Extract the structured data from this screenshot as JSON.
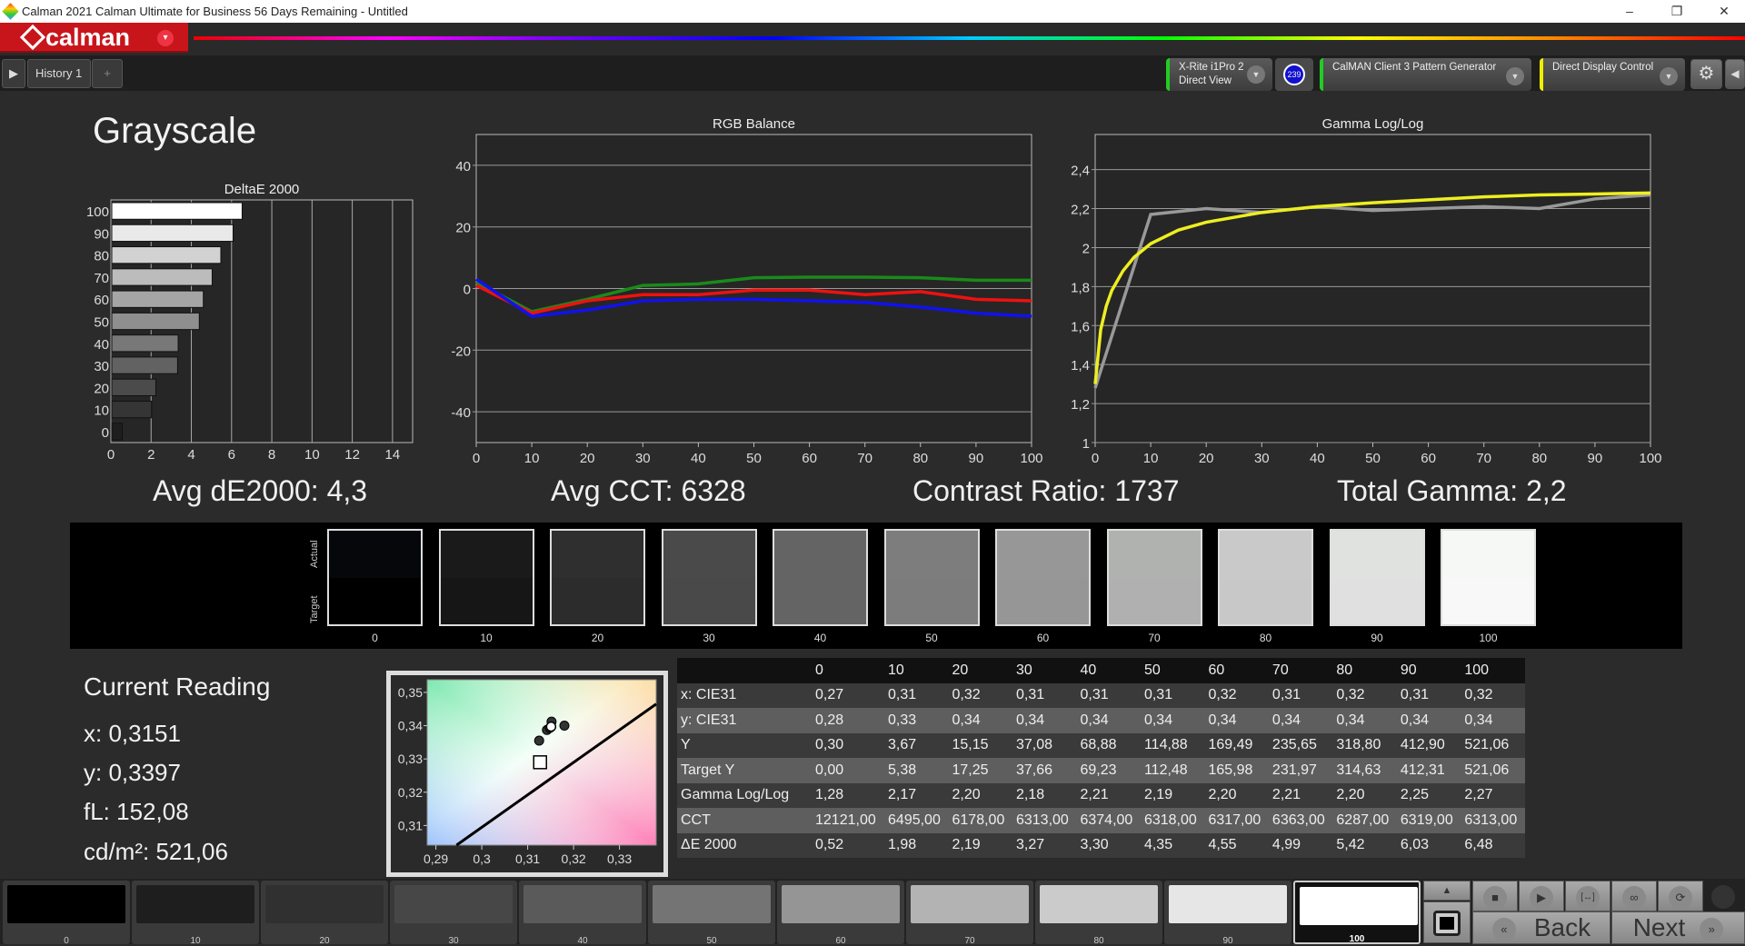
{
  "window": {
    "title": "Calman 2021 Calman Ultimate for Business 56 Days Remaining - Untitled",
    "minimize": "–",
    "restore": "❐",
    "close": "✕"
  },
  "logo": {
    "text": "calman",
    "menu": "▾",
    "brand_color": "#c8151b"
  },
  "tabs": {
    "play": "▶",
    "history": "History 1",
    "add": "+"
  },
  "devices": [
    {
      "line1": "X-Rite i1Pro 2",
      "line2": "Direct View",
      "color": "#22cc22",
      "badge": "239"
    },
    {
      "line1": "CalMAN Client 3 Pattern Generator",
      "line2": "",
      "color": "#22cc22"
    },
    {
      "line1": "Direct Display Control",
      "line2": "",
      "color": "#eeee00"
    }
  ],
  "toolbar": {
    "settings": "⚙",
    "collapse": "◀"
  },
  "page": {
    "title": "Grayscale"
  },
  "summary": {
    "avg_de": "Avg dE2000: 4,3",
    "avg_cct": "Avg CCT: 6328",
    "contrast": "Contrast Ratio: 1737",
    "gamma": "Total Gamma: 2,2"
  },
  "chart_data": [
    {
      "type": "bar",
      "orientation": "horizontal",
      "title": "DeltaE 2000",
      "categories": [
        "0",
        "10",
        "20",
        "30",
        "40",
        "50",
        "60",
        "70",
        "80",
        "90",
        "100"
      ],
      "values": [
        0.52,
        1.98,
        2.19,
        3.27,
        3.3,
        4.35,
        4.55,
        4.99,
        5.42,
        6.03,
        6.48
      ],
      "xlim": [
        0,
        15
      ],
      "xticks": [
        "0",
        "2",
        "4",
        "6",
        "8",
        "10",
        "12",
        "14"
      ],
      "grid": true
    },
    {
      "type": "line",
      "title": "RGB Balance",
      "x": [
        0,
        10,
        20,
        30,
        40,
        50,
        60,
        70,
        80,
        90,
        100
      ],
      "ylim": [
        -50,
        50
      ],
      "yticks": [
        "40",
        "20",
        "0",
        "-20",
        "-40"
      ],
      "xticks": [
        "0",
        "10",
        "20",
        "30",
        "40",
        "50",
        "60",
        "70",
        "80",
        "90",
        "100"
      ],
      "grid": true,
      "series": [
        {
          "color": "#1a8a1a",
          "values": [
            2,
            -7.5,
            -3.5,
            1,
            1.5,
            3.5,
            3.7,
            3.7,
            3.5,
            2.7,
            2.7
          ]
        },
        {
          "color": "#ee1111",
          "values": [
            1,
            -8,
            -4,
            -2,
            -2,
            -0.5,
            -0.5,
            -2,
            -1,
            -3.5,
            -4
          ]
        },
        {
          "color": "#1111ee",
          "values": [
            3,
            -9,
            -7,
            -4,
            -3.5,
            -3.5,
            -4,
            -4.5,
            -6,
            -8,
            -9
          ]
        }
      ]
    },
    {
      "type": "line",
      "title": "Gamma Log/Log",
      "ylim": [
        1,
        2.58
      ],
      "yticks": [
        "2,4",
        "2,2",
        "2",
        "1,8",
        "1,6",
        "1,4",
        "1,2",
        "1"
      ],
      "xticks": [
        "0",
        "10",
        "20",
        "30",
        "40",
        "50",
        "60",
        "70",
        "80",
        "90",
        "100"
      ],
      "grid": true,
      "series": [
        {
          "color": "#999999",
          "x": [
            0,
            10,
            20,
            30,
            40,
            50,
            60,
            70,
            80,
            90,
            100
          ],
          "values": [
            1.28,
            2.17,
            2.2,
            2.18,
            2.21,
            2.19,
            2.2,
            2.21,
            2.2,
            2.25,
            2.27
          ]
        },
        {
          "color": "#eeee22",
          "x": [
            0,
            1,
            2,
            3,
            5,
            7,
            10,
            15,
            20,
            30,
            40,
            50,
            60,
            70,
            80,
            90,
            100
          ],
          "values": [
            1.3,
            1.58,
            1.7,
            1.78,
            1.88,
            1.95,
            2.02,
            2.09,
            2.13,
            2.18,
            2.21,
            2.23,
            2.245,
            2.26,
            2.27,
            2.275,
            2.28
          ]
        }
      ]
    },
    {
      "type": "scatter",
      "xlim": [
        0.2881,
        0.338
      ],
      "ylim": [
        0.3041,
        0.3538
      ],
      "xticks": [
        "0,29",
        "0,3",
        "0,31",
        "0,32",
        "0,33"
      ],
      "yticks": [
        "0,35",
        "0,34",
        "0,33",
        "0,32",
        "0,31"
      ],
      "target": [
        0.3127,
        0.329
      ],
      "points": [
        [
          0.3125,
          0.3355
        ],
        [
          0.3142,
          0.3387
        ],
        [
          0.3148,
          0.3393
        ],
        [
          0.3152,
          0.3412
        ],
        [
          0.318,
          0.34
        ]
      ],
      "current": [
        0.3151,
        0.3397
      ],
      "locus": [
        [
          0.2945,
          0.3041
        ],
        [
          0.338,
          0.3465
        ]
      ]
    }
  ],
  "swatches": {
    "actual_label": "Actual",
    "target_label": "Target",
    "items": [
      {
        "label": "0",
        "actual": "#05070b",
        "target": "#000000"
      },
      {
        "label": "10",
        "actual": "#1a1a1a",
        "target": "#161616"
      },
      {
        "label": "20",
        "actual": "#2f2f2f",
        "target": "#2c2c2c"
      },
      {
        "label": "30",
        "actual": "#4a4a4a",
        "target": "#494949"
      },
      {
        "label": "40",
        "actual": "#646464",
        "target": "#646464"
      },
      {
        "label": "50",
        "actual": "#7d7d7d",
        "target": "#7c7c7c"
      },
      {
        "label": "60",
        "actual": "#979797",
        "target": "#969696"
      },
      {
        "label": "70",
        "actual": "#b0b2b0",
        "target": "#b0b0b0"
      },
      {
        "label": "80",
        "actual": "#c9c9c9",
        "target": "#c8c8c8"
      },
      {
        "label": "90",
        "actual": "#e0e2e0",
        "target": "#e0e0e0"
      },
      {
        "label": "100",
        "actual": "#f6f8f6",
        "target": "#f8f8f8"
      }
    ]
  },
  "reading": {
    "title": "Current Reading",
    "x": "x: 0,3151",
    "y": "y: 0,3397",
    "fl": "fL: 152,08",
    "cdm2": "cd/m²: 521,06"
  },
  "table": {
    "columns": [
      "",
      "0",
      "10",
      "20",
      "30",
      "40",
      "50",
      "60",
      "70",
      "80",
      "90",
      "100"
    ],
    "rows": [
      [
        "x: CIE31",
        "0,27",
        "0,31",
        "0,32",
        "0,31",
        "0,31",
        "0,31",
        "0,32",
        "0,31",
        "0,32",
        "0,31",
        "0,32"
      ],
      [
        "y: CIE31",
        "0,28",
        "0,33",
        "0,34",
        "0,34",
        "0,34",
        "0,34",
        "0,34",
        "0,34",
        "0,34",
        "0,34",
        "0,34"
      ],
      [
        "Y",
        "0,30",
        "3,67",
        "15,15",
        "37,08",
        "68,88",
        "114,88",
        "169,49",
        "235,65",
        "318,80",
        "412,90",
        "521,06"
      ],
      [
        "Target Y",
        "0,00",
        "5,38",
        "17,25",
        "37,66",
        "69,23",
        "112,48",
        "165,98",
        "231,97",
        "314,63",
        "412,31",
        "521,06"
      ],
      [
        "Gamma Log/Log",
        "1,28",
        "2,17",
        "2,20",
        "2,18",
        "2,21",
        "2,19",
        "2,20",
        "2,21",
        "2,20",
        "2,25",
        "2,27"
      ],
      [
        "CCT",
        "12121,00",
        "6495,00",
        "6178,00",
        "6313,00",
        "6374,00",
        "6318,00",
        "6317,00",
        "6363,00",
        "6287,00",
        "6319,00",
        "6313,00"
      ],
      [
        "ΔE 2000",
        "0,52",
        "1,98",
        "2,19",
        "3,27",
        "3,30",
        "4,35",
        "4,55",
        "4,99",
        "5,42",
        "6,03",
        "6,48"
      ]
    ]
  },
  "bottom": {
    "swatches": [
      {
        "label": "0",
        "color": "#000000"
      },
      {
        "label": "10",
        "color": "#1e1e1e"
      },
      {
        "label": "20",
        "color": "#303030"
      },
      {
        "label": "30",
        "color": "#474747"
      },
      {
        "label": "40",
        "color": "#5a5a5a"
      },
      {
        "label": "50",
        "color": "#747474"
      },
      {
        "label": "60",
        "color": "#959595"
      },
      {
        "label": "70",
        "color": "#b3b3b3"
      },
      {
        "label": "80",
        "color": "#cbcbcb"
      },
      {
        "label": "90",
        "color": "#e6e6e6"
      },
      {
        "label": "100",
        "color": "#ffffff"
      }
    ],
    "selected": "100",
    "up": "▲",
    "stop": "■",
    "play": "▶",
    "fit": "[↔]",
    "loop": "∞",
    "refresh": "⟳",
    "back": "Back",
    "back_icon": "«",
    "next": "Next",
    "next_icon": "»"
  }
}
